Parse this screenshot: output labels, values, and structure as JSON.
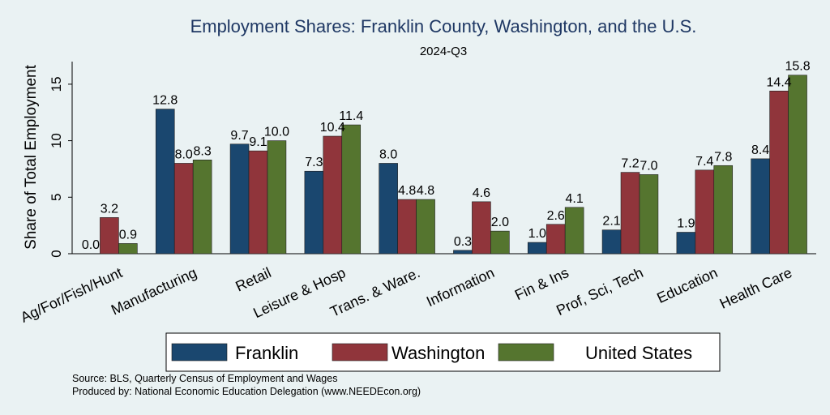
{
  "chart_data": {
    "type": "bar",
    "title": "Employment Shares: Franklin County, Washington, and the U.S.",
    "subtitle": "2024-Q3",
    "ylabel": "Share of Total Employment",
    "xlabel": "",
    "ylim": [
      0,
      17
    ],
    "yticks": [
      "0",
      "5",
      "10",
      "15"
    ],
    "grid": false,
    "legend_position": "bottom",
    "categories": [
      "Ag/For/Fish/Hunt",
      "Manufacturing",
      "Retail",
      "Leisure & Hosp",
      "Trans. & Ware.",
      "Information",
      "Fin & Ins",
      "Prof, Sci, Tech",
      "Education",
      "Health Care"
    ],
    "series": [
      {
        "name": "Franklin",
        "color": "#1a476f",
        "values": [
          0.0,
          12.8,
          9.7,
          7.3,
          8.0,
          0.3,
          1.0,
          2.1,
          1.9,
          8.4
        ],
        "labels": [
          "0.0",
          "12.8",
          "9.7",
          "7.3",
          "8.0",
          "0.3",
          "1.0",
          "2.1",
          "1.9",
          "8.4"
        ]
      },
      {
        "name": "Washington",
        "color": "#90353b",
        "values": [
          3.2,
          8.0,
          9.1,
          10.4,
          4.8,
          4.6,
          2.6,
          7.2,
          7.4,
          14.4
        ],
        "labels": [
          "3.2",
          "8.0",
          "9.1",
          "10.4",
          "4.8",
          "4.6",
          "2.6",
          "7.2",
          "7.4",
          "14.4"
        ]
      },
      {
        "name": "United States",
        "color": "#55752f",
        "values": [
          0.9,
          8.3,
          10.0,
          11.4,
          4.8,
          2.0,
          4.1,
          7.0,
          7.8,
          15.8
        ],
        "labels": [
          "0.9",
          "8.3",
          "10.0",
          "11.4",
          "4.8",
          "2.0",
          "4.1",
          "7.0",
          "7.8",
          "15.8"
        ]
      }
    ]
  },
  "source": {
    "line1": "Source: BLS, Quarterly Census of Employment and Wages",
    "line2": "Produced by: National Economic Education Delegation (www.NEEDEcon.org)"
  }
}
